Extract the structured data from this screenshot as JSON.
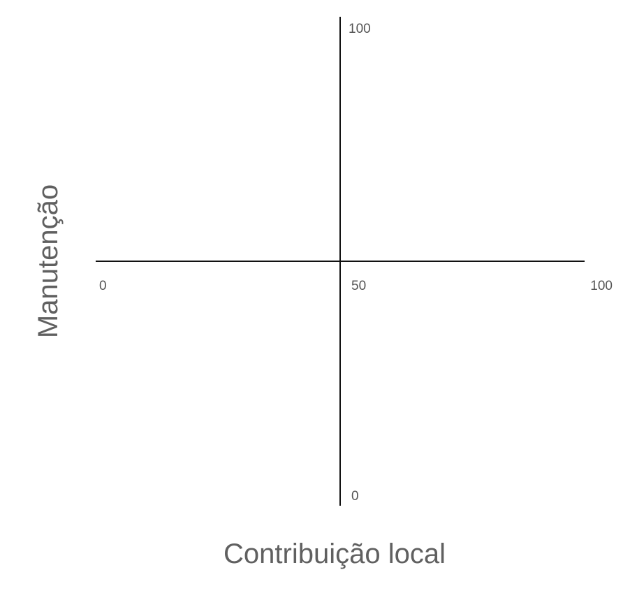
{
  "chart_data": {
    "type": "scatter",
    "title": "",
    "xlabel": "Contribuição local",
    "ylabel": "Manutenção",
    "xlim": [
      0,
      100
    ],
    "ylim": [
      0,
      100
    ],
    "x_ticks": [
      {
        "value": 0,
        "label": "0"
      },
      {
        "value": 50,
        "label": "50"
      },
      {
        "value": 100,
        "label": "100"
      }
    ],
    "y_ticks": [
      {
        "value": 0,
        "label": "0"
      },
      {
        "value": 100,
        "label": "100"
      }
    ],
    "axes_cross_at": {
      "x": 50,
      "y": 50
    },
    "grid": false,
    "series": []
  },
  "colors": {
    "axis_line": "#111111",
    "tick_text": "#555555",
    "title_text": "#606060"
  }
}
